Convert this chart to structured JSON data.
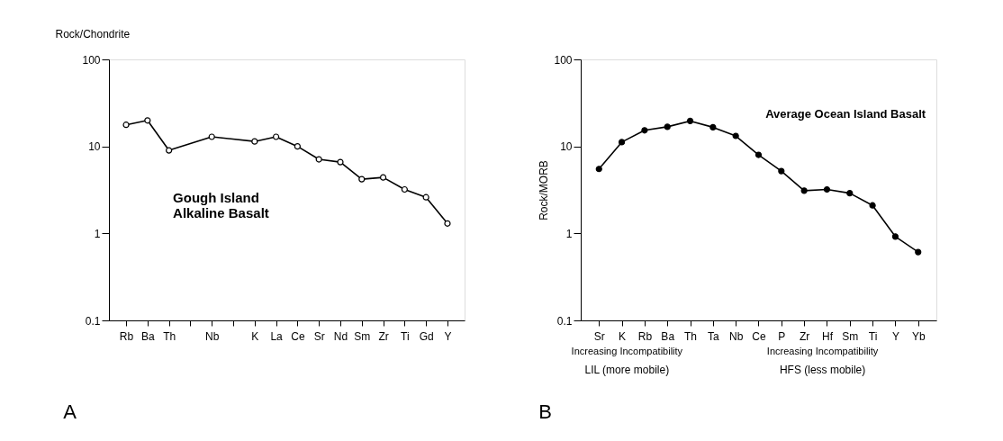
{
  "chart_data": [
    {
      "type": "line",
      "ylabel": "Rock/Chondrite",
      "categories": [
        "Rb",
        "Ba",
        "Th",
        null,
        "Nb",
        null,
        "K",
        "La",
        "Ce",
        "Sr",
        "Nd",
        "Sm",
        "Zr",
        "Ti",
        "Gd",
        "Y"
      ],
      "series": [
        {
          "color": "#000000",
          "values": [
            17.7,
            19.9,
            9.0,
            null,
            12.9,
            null,
            11.4,
            12.9,
            10.0,
            7.1,
            6.6,
            4.2,
            4.4,
            3.2,
            2.6,
            1.3
          ]
        }
      ],
      "ylim": [
        0.1,
        100
      ],
      "yticks": [
        0.1,
        1,
        10,
        100
      ],
      "log": "y",
      "grid": false,
      "marker": "circle",
      "line_style": "solid",
      "annotations": [
        "Gough Island\nAlkaline Basalt",
        "A"
      ]
    },
    {
      "type": "line",
      "ylabel": "Rock/MORB",
      "categories": [
        "Sr",
        "K",
        "Rb",
        "Ba",
        "Th",
        "Ta",
        "Nb",
        "Ce",
        "P",
        "Zr",
        "Hf",
        "Sm",
        "Ti",
        "Y",
        "Yb"
      ],
      "series": [
        {
          "color": "#000000",
          "values": [
            5.5,
            11.2,
            15.3,
            16.8,
            19.6,
            16.6,
            13.2,
            8.0,
            5.2,
            3.1,
            3.2,
            2.9,
            2.1,
            0.92,
            0.61
          ]
        }
      ],
      "ylim": [
        0.1,
        100
      ],
      "yticks": [
        0.1,
        1,
        10,
        100
      ],
      "log": "y",
      "grid": false,
      "marker": "circle",
      "line_style": "solid",
      "annotations": [
        "Average Ocean Island Basalt",
        "Increasing Incompatibility",
        "Increasing Incompatibility",
        "LIL (more mobile)",
        "HFS (less mobile)",
        "B"
      ]
    }
  ]
}
